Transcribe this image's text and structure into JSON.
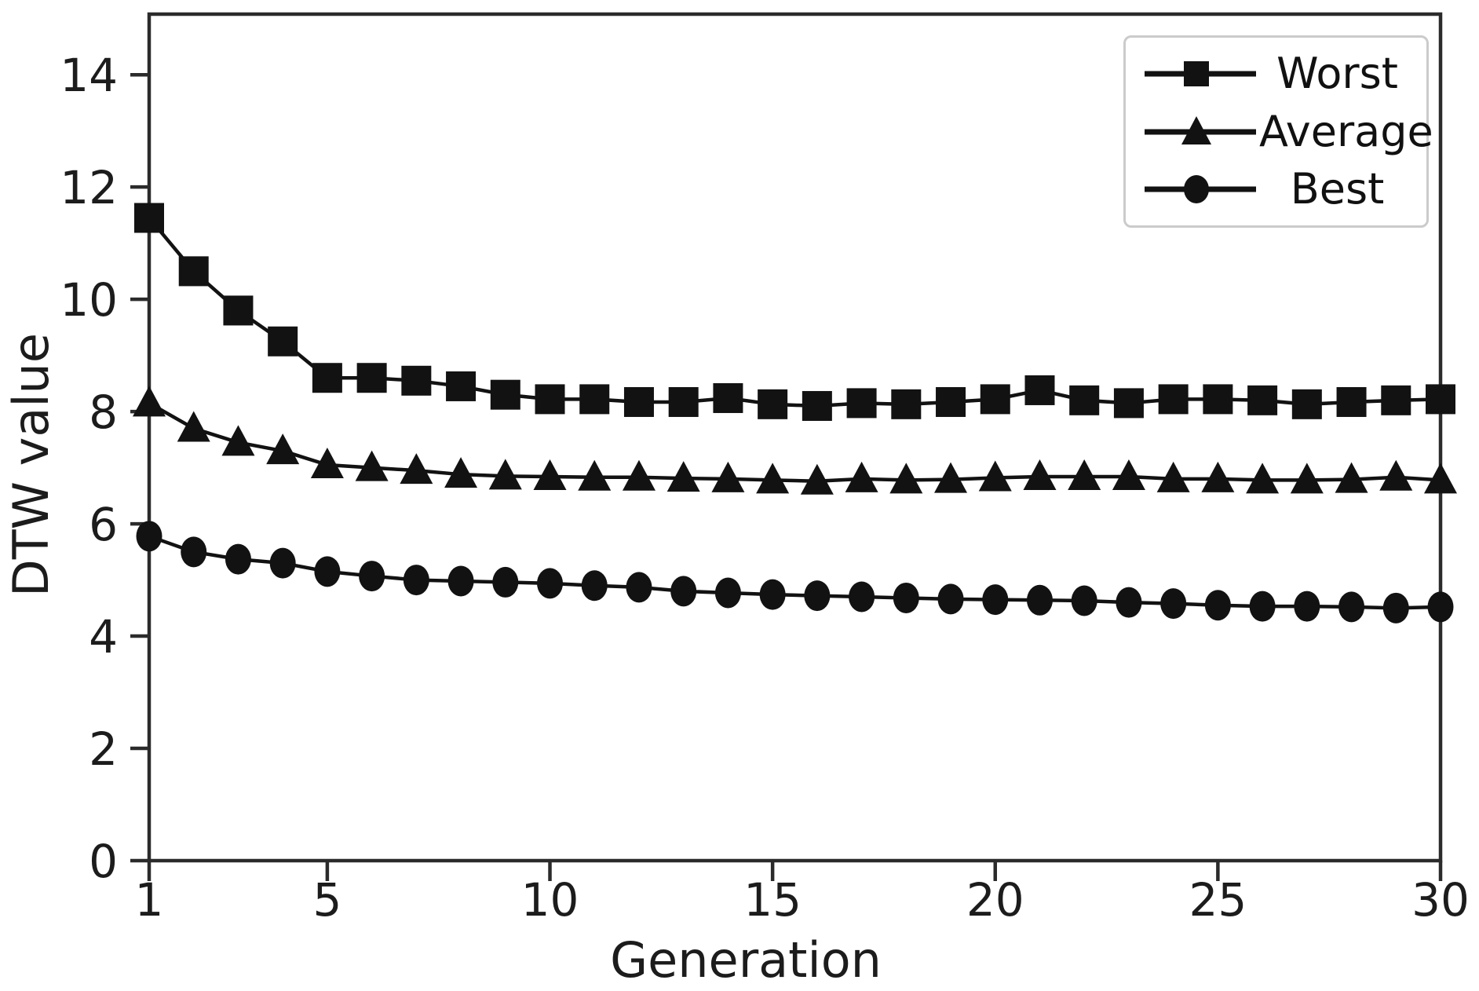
{
  "figure": {
    "background_color": "#ffffff"
  },
  "chart_data": {
    "type": "line",
    "title": "",
    "xlabel": "Generation",
    "ylabel": "DTW value",
    "x": [
      1,
      2,
      3,
      4,
      5,
      6,
      7,
      8,
      9,
      10,
      11,
      12,
      13,
      14,
      15,
      16,
      17,
      18,
      19,
      20,
      21,
      22,
      23,
      24,
      25,
      26,
      27,
      28,
      29,
      30
    ],
    "series": [
      {
        "name": "Worst",
        "marker": "square",
        "values": [
          11.45,
          10.5,
          9.8,
          9.25,
          8.6,
          8.6,
          8.55,
          8.45,
          8.3,
          8.22,
          8.22,
          8.17,
          8.17,
          8.24,
          8.13,
          8.1,
          8.15,
          8.13,
          8.17,
          8.22,
          8.38,
          8.2,
          8.15,
          8.22,
          8.22,
          8.2,
          8.13,
          8.17,
          8.2,
          8.22
        ]
      },
      {
        "name": "Average",
        "marker": "triangle",
        "values": [
          8.15,
          7.7,
          7.45,
          7.3,
          7.05,
          7.0,
          6.95,
          6.88,
          6.85,
          6.84,
          6.83,
          6.83,
          6.81,
          6.8,
          6.78,
          6.76,
          6.8,
          6.78,
          6.79,
          6.82,
          6.84,
          6.84,
          6.84,
          6.8,
          6.8,
          6.78,
          6.78,
          6.79,
          6.83,
          6.78
        ]
      },
      {
        "name": "Best",
        "marker": "circle",
        "values": [
          5.78,
          5.5,
          5.37,
          5.3,
          5.15,
          5.07,
          5.0,
          4.98,
          4.96,
          4.94,
          4.9,
          4.87,
          4.8,
          4.77,
          4.74,
          4.72,
          4.7,
          4.68,
          4.66,
          4.65,
          4.64,
          4.63,
          4.6,
          4.58,
          4.55,
          4.53,
          4.53,
          4.52,
          4.5,
          4.52
        ]
      }
    ],
    "xticks": [
      1,
      5,
      10,
      15,
      20,
      25,
      30
    ],
    "yticks": [
      0,
      2,
      4,
      6,
      8,
      10,
      12,
      14
    ],
    "xlim": [
      1,
      30
    ],
    "ylim": [
      0,
      15.08
    ],
    "grid": false,
    "legend_position": "upper right",
    "line_color": "#121212",
    "marker_color": "#121212",
    "axis_color": "#2b2b2b",
    "text_color": "#1c1c1c",
    "legend_border_color": "#cbcbcb"
  }
}
